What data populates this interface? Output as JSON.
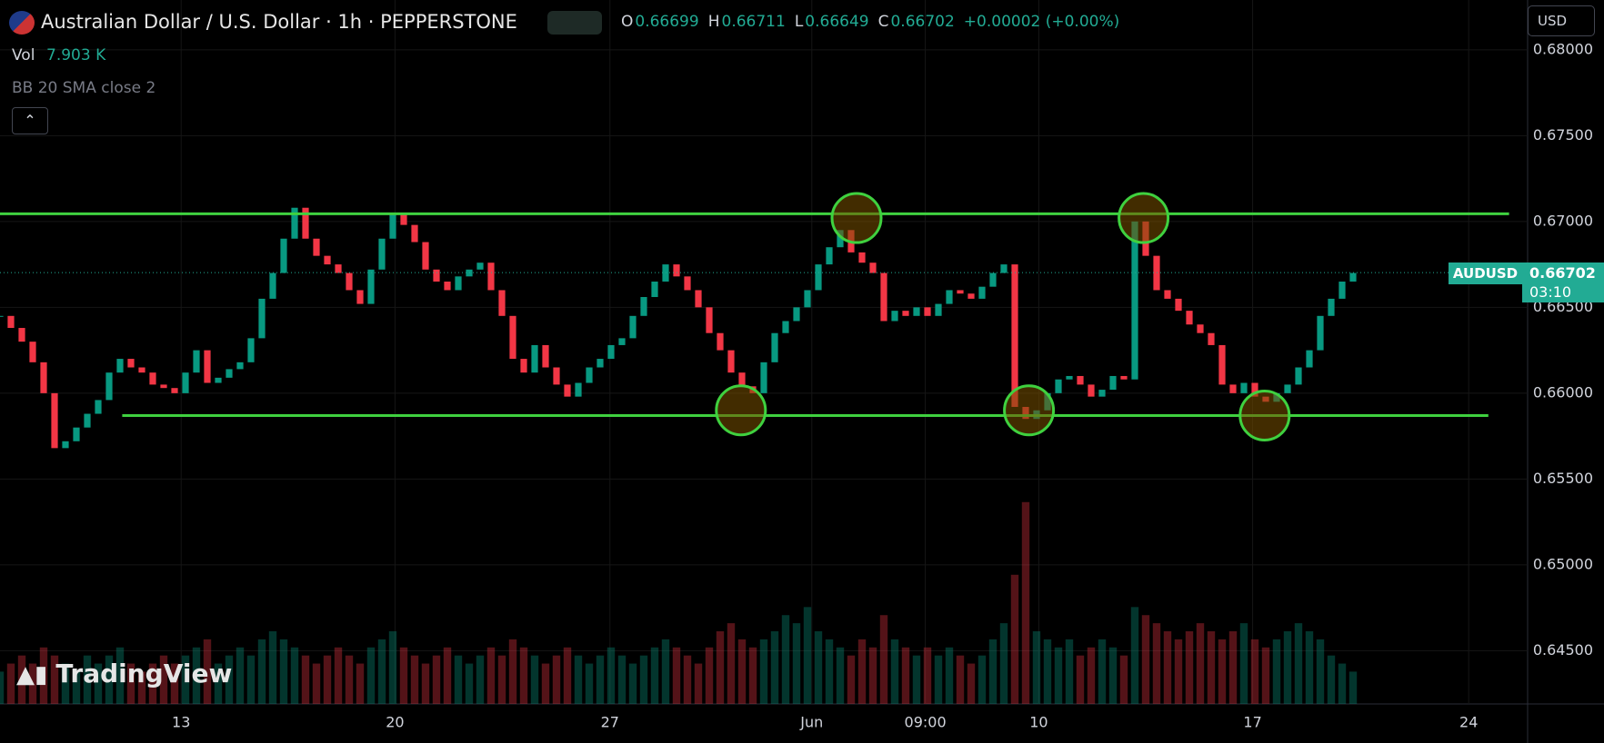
{
  "header": {
    "symbol": "Australian Dollar / U.S. Dollar · 1h · PEPPERSTONE",
    "ohlc": [
      {
        "key": "O",
        "value": "0.66699"
      },
      {
        "key": "H",
        "value": "0.66711"
      },
      {
        "key": "L",
        "value": "0.66649"
      },
      {
        "key": "C",
        "value": "0.66702"
      }
    ],
    "change": "+0.00002 (+0.00%)",
    "currency": "USD"
  },
  "indicators": {
    "vol_label": "Vol",
    "vol_value": "7.903 K",
    "bb": "BB 20 SMA close 2"
  },
  "logo": "TradingView",
  "price_tag": {
    "symbol": "AUDUSD",
    "price": "0.66702",
    "countdown": "03:10"
  },
  "chart_data": {
    "type": "candlestick",
    "values": [
      0.6645,
      0.6638,
      0.663,
      0.6618,
      0.66,
      0.6568,
      0.6572,
      0.658,
      0.6588,
      0.6596,
      0.6612,
      0.662,
      0.6615,
      0.6612,
      0.6605,
      0.6603,
      0.66,
      0.6612,
      0.6625,
      0.6606,
      0.6609,
      0.6614,
      0.6618,
      0.6632,
      0.6655,
      0.667,
      0.669,
      0.6708,
      0.669,
      0.668,
      0.6675,
      0.667,
      0.666,
      0.6652,
      0.6672,
      0.669,
      0.6705,
      0.6698,
      0.6688,
      0.6672,
      0.6665,
      0.666,
      0.6668,
      0.6672,
      0.6676,
      0.666,
      0.6645,
      0.662,
      0.6612,
      0.6628,
      0.6615,
      0.6605,
      0.6598,
      0.6606,
      0.6615,
      0.662,
      0.6628,
      0.6632,
      0.6645,
      0.6656,
      0.6665,
      0.6675,
      0.6668,
      0.666,
      0.665,
      0.6635,
      0.6625,
      0.6612,
      0.6604,
      0.66,
      0.6618,
      0.6635,
      0.6642,
      0.665,
      0.666,
      0.6675,
      0.6685,
      0.6695,
      0.6682,
      0.6676,
      0.667,
      0.6642,
      0.6648,
      0.6645,
      0.665,
      0.6645,
      0.6652,
      0.666,
      0.6658,
      0.6655,
      0.6662,
      0.667,
      0.6675,
      0.6592,
      0.6585,
      0.659,
      0.66,
      0.6608,
      0.661,
      0.6605,
      0.6598,
      0.6602,
      0.661,
      0.6608,
      0.67,
      0.668,
      0.666,
      0.6655,
      0.6648,
      0.664,
      0.6635,
      0.6628,
      0.6605,
      0.66,
      0.6606,
      0.6598,
      0.6595,
      0.66,
      0.6605,
      0.6615,
      0.6625,
      0.6645,
      0.6655,
      0.6665,
      0.667
    ],
    "volume": [
      4,
      5,
      6,
      5,
      7,
      6,
      5,
      4,
      6,
      5,
      6,
      7,
      5,
      4,
      5,
      6,
      5,
      6,
      7,
      8,
      5,
      6,
      7,
      6,
      8,
      9,
      8,
      7,
      6,
      5,
      6,
      7,
      6,
      5,
      7,
      8,
      9,
      7,
      6,
      5,
      6,
      7,
      6,
      5,
      6,
      7,
      6,
      8,
      7,
      6,
      5,
      6,
      7,
      6,
      5,
      6,
      7,
      6,
      5,
      6,
      7,
      8,
      7,
      6,
      5,
      7,
      9,
      10,
      8,
      7,
      8,
      9,
      11,
      10,
      12,
      9,
      8,
      7,
      6,
      8,
      7,
      11,
      8,
      7,
      6,
      7,
      6,
      7,
      6,
      5,
      6,
      8,
      10,
      16,
      25,
      9,
      8,
      7,
      8,
      6,
      7,
      8,
      7,
      6,
      12,
      11,
      10,
      9,
      8,
      9,
      10,
      9,
      8,
      9,
      10,
      8,
      7,
      8,
      9,
      10,
      9,
      8,
      6,
      5,
      4
    ],
    "vlim": [
      0,
      45
    ],
    "up_color": "#089981",
    "down_color": "#f23645",
    "xlim": [
      0,
      140
    ],
    "xticks": [
      {
        "value": 16.6,
        "label": "13"
      },
      {
        "value": 36.2,
        "label": "20"
      },
      {
        "value": 55.9,
        "label": "27"
      },
      {
        "value": 74.4,
        "label": "Jun"
      },
      {
        "value": 84.8,
        "label": "09:00"
      },
      {
        "value": 95.2,
        "label": "10"
      },
      {
        "value": 114.8,
        "label": "17"
      },
      {
        "value": 134.6,
        "label": "24"
      }
    ],
    "ylim": [
      0.6419,
      0.6829
    ],
    "yticks": [
      {
        "value": 0.68,
        "label": "0.68000"
      },
      {
        "value": 0.675,
        "label": "0.67500"
      },
      {
        "value": 0.67,
        "label": "0.67000"
      },
      {
        "value": 0.665,
        "label": "0.66500"
      },
      {
        "value": 0.66,
        "label": "0.66000"
      },
      {
        "value": 0.655,
        "label": "0.65500"
      },
      {
        "value": 0.65,
        "label": "0.65000"
      },
      {
        "value": 0.645,
        "label": "0.64500"
      }
    ],
    "grid": true,
    "levels": [
      {
        "value": 0.67045,
        "from": 0,
        "to": 138.3
      },
      {
        "value": 0.6587,
        "from": 11.2,
        "to": 136.4
      }
    ],
    "highlights": [
      {
        "x": 78.5,
        "value": 0.6702
      },
      {
        "x": 104.8,
        "value": 0.6702
      },
      {
        "x": 67.9,
        "value": 0.659
      },
      {
        "x": 94.3,
        "value": 0.659
      },
      {
        "x": 115.9,
        "value": 0.6587
      }
    ],
    "level_color": "#3fd13f",
    "last_price": 0.66702
  }
}
